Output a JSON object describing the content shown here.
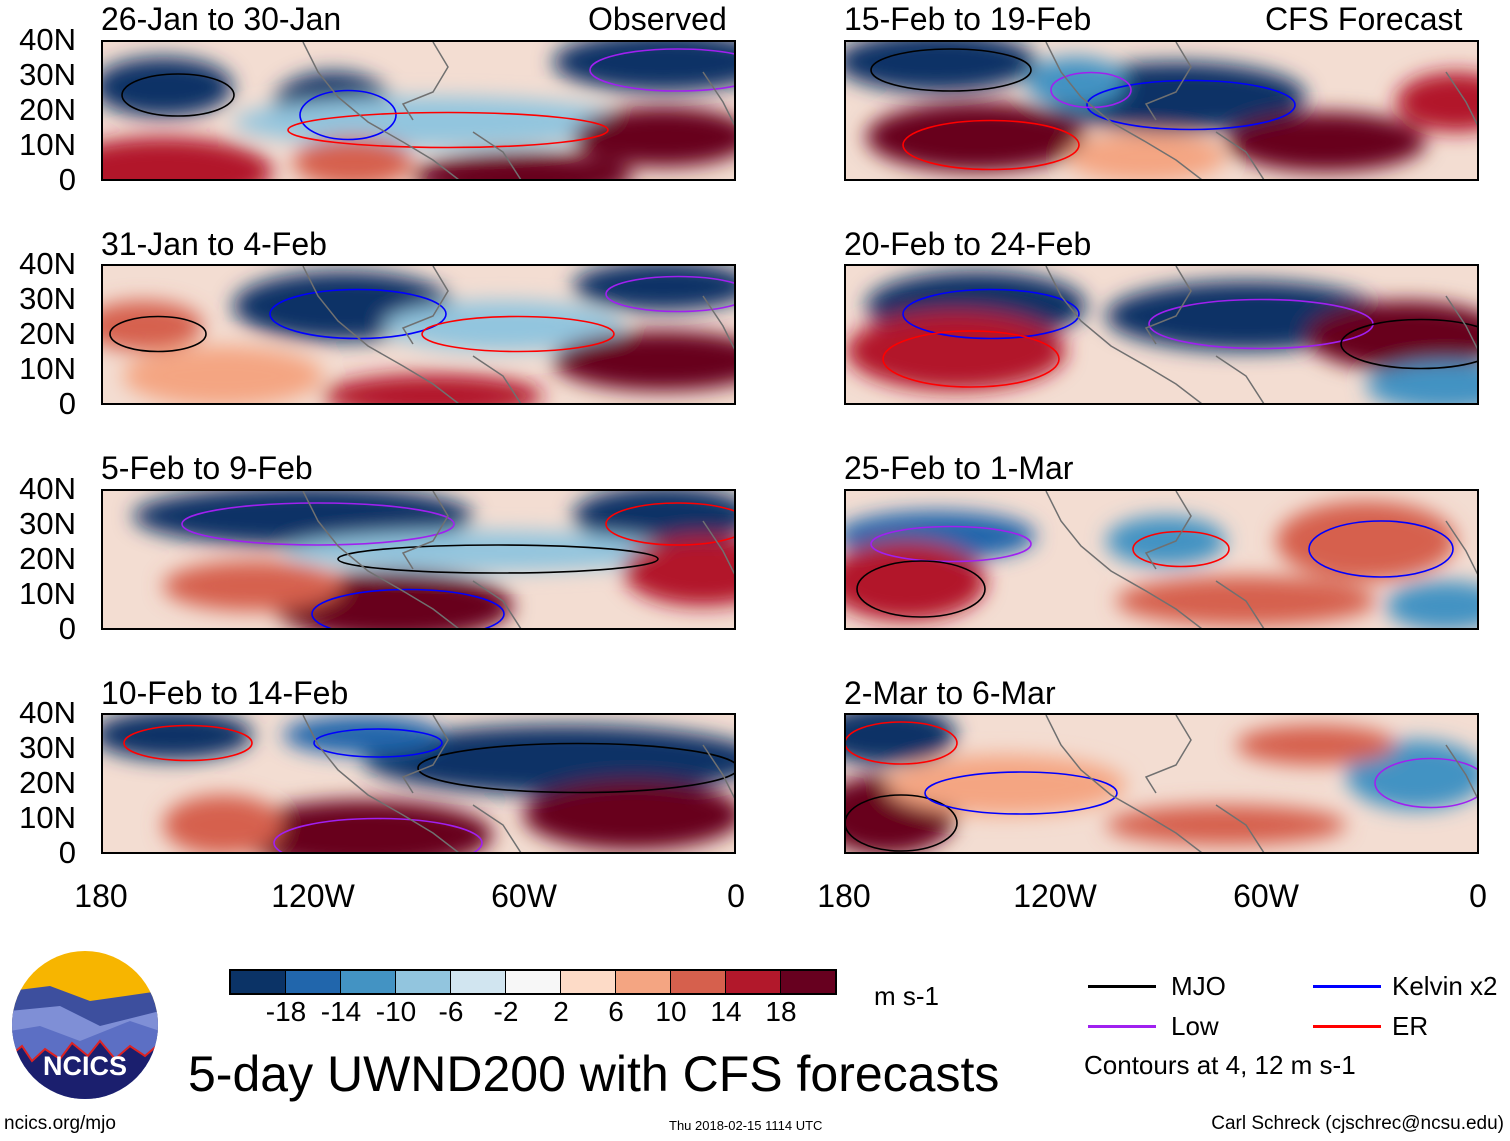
{
  "headers": {
    "left": "Observed",
    "right": "CFS Forecast"
  },
  "panels": [
    {
      "date": "26-Jan to 30-Jan"
    },
    {
      "date": "31-Jan to 4-Feb"
    },
    {
      "date": "5-Feb to 9-Feb"
    },
    {
      "date": "10-Feb to 14-Feb"
    },
    {
      "date": "15-Feb to 19-Feb"
    },
    {
      "date": "20-Feb to 24-Feb"
    },
    {
      "date": "25-Feb to 1-Mar"
    },
    {
      "date": "2-Mar to 6-Mar"
    }
  ],
  "lat_labels": [
    "40N",
    "30N",
    "20N",
    "10N",
    "0"
  ],
  "lon_labels": [
    "180",
    "120W",
    "60W",
    "0"
  ],
  "colorbar": {
    "colors": [
      "#0b3366",
      "#2166ac",
      "#4393c3",
      "#92c5de",
      "#d1e5f0",
      "#f7f7f7",
      "#fddbc7",
      "#f4a582",
      "#d6604d",
      "#b2182b",
      "#67001f"
    ],
    "ticks": [
      "-18",
      "-14",
      "-10",
      "-6",
      "-2",
      "2",
      "6",
      "10",
      "14",
      "18"
    ],
    "units": "m s-1"
  },
  "legend": {
    "items": [
      {
        "label": "MJO",
        "color": "#000000"
      },
      {
        "label": "Kelvin x2",
        "color": "#0000ff"
      },
      {
        "label": "Low",
        "color": "#a020f0"
      },
      {
        "label": "ER",
        "color": "#ff0000"
      }
    ],
    "contours_note": "Contours at 4, 12 m s-1"
  },
  "title": "5-day UWND200 with CFS forecasts",
  "logo_text": "NCICS",
  "footer": {
    "url": "ncics.org/mjo",
    "timestamp": "Thu 2018-02-15 1114 UTC",
    "author": "Carl Schreck (cjschrec@ncsu.edu)"
  }
}
